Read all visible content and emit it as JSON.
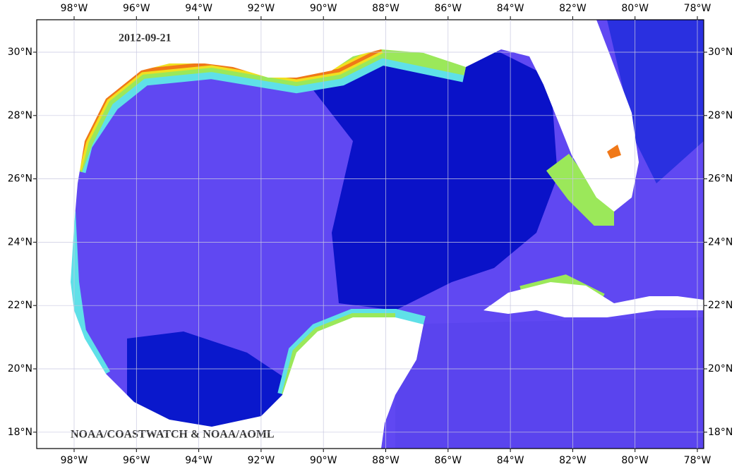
{
  "date": "2012-09-21",
  "credit": "NOAA/COASTWATCH & NOAA/AOML",
  "lon_labels": [
    "98°W",
    "96°W",
    "94°W",
    "92°W",
    "90°W",
    "88°W",
    "86°W",
    "84°W",
    "82°W",
    "80°W",
    "78°W"
  ],
  "lat_labels": [
    "30°N",
    "28°N",
    "26°N",
    "24°N",
    "22°N",
    "20°N",
    "18°N"
  ]
}
